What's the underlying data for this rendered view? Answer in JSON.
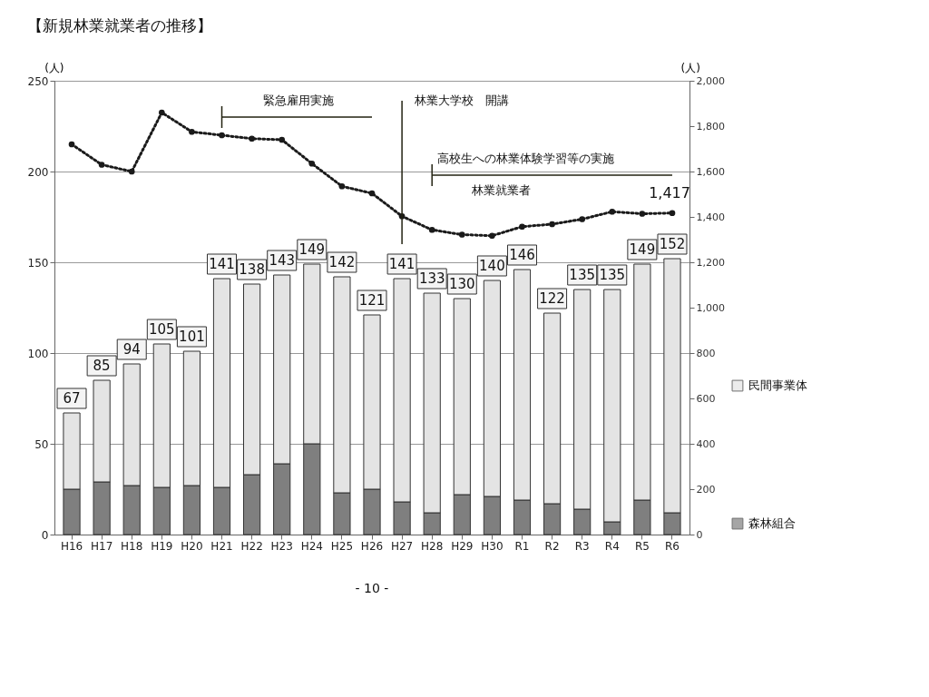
{
  "chart_data": {
    "type": "bar",
    "title": "【新規林業就業者の推移】",
    "categories": [
      "H16",
      "H17",
      "H18",
      "H19",
      "H20",
      "H21",
      "H22",
      "H23",
      "H24",
      "H25",
      "H26",
      "H27",
      "H28",
      "H29",
      "H30",
      "R1",
      "R2",
      "R3",
      "R4",
      "R5",
      "R6"
    ],
    "stacked": true,
    "series": [
      {
        "name": "森林組合",
        "color": "#7f7f7f",
        "values": [
          25,
          29,
          27,
          26,
          27,
          26,
          33,
          39,
          50,
          23,
          25,
          18,
          12,
          22,
          21,
          19,
          17,
          14,
          7,
          19,
          12
        ]
      },
      {
        "name": "民間事業体",
        "color": "#e4e4e4",
        "values": [
          42,
          56,
          67,
          79,
          74,
          115,
          105,
          104,
          99,
          119,
          96,
          123,
          121,
          108,
          119,
          127,
          105,
          121,
          128,
          130,
          140
        ]
      },
      {
        "name": "林業就業者",
        "type": "line",
        "axis": "y2",
        "color": "#1a1a1a",
        "marker": "circle",
        "line_style": "dotted",
        "values": [
          1720,
          1630,
          1600,
          1860,
          1775,
          1760,
          1745,
          1740,
          1635,
          1535,
          1504,
          1403,
          1343,
          1322,
          1317,
          1357,
          1368,
          1390,
          1423,
          1414,
          1417
        ]
      }
    ],
    "totals": [
      "67",
      "85",
      "94",
      "105",
      "101",
      "141",
      "138",
      "143",
      "149",
      "142",
      "121",
      "141",
      "133",
      "130",
      "140",
      "146",
      "122",
      "135",
      "135",
      "149",
      "152"
    ],
    "ylabel": "(人)",
    "ylim": [
      0,
      250
    ],
    "yticks": [
      0,
      50,
      100,
      150,
      200,
      250
    ],
    "y2label": "(人)",
    "y2lim": [
      0,
      2000
    ],
    "y2ticks": [
      0,
      200,
      400,
      600,
      800,
      {
        "value": 1000,
        "label": "1,000"
      },
      {
        "value": 1200,
        "label": "1,200"
      },
      {
        "value": 1400,
        "label": "1,400"
      },
      {
        "value": 1600,
        "label": "1,600"
      },
      {
        "value": 1800,
        "label": "1,800"
      },
      {
        "value": 2000,
        "label": "2,000"
      }
    ],
    "grid": "y",
    "legend": "right",
    "annotations": [
      "1,417",
      "緊急雇用実施",
      "林業大学校　開講",
      "高校生への林業体験学習等の実施",
      "- 10 -"
    ]
  }
}
